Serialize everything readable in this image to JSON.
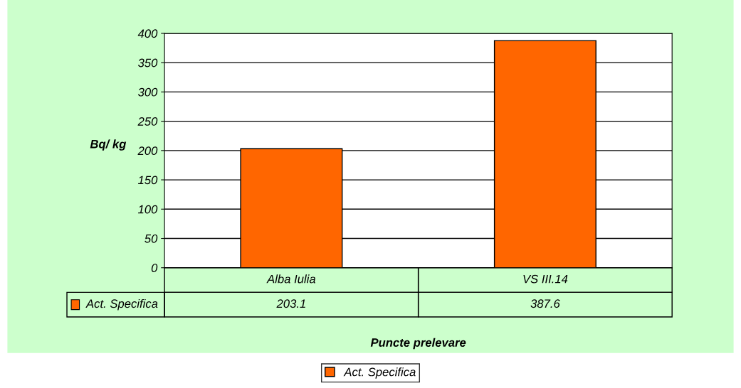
{
  "chart_data": {
    "type": "bar",
    "xlabel": "Puncte prelevare",
    "ylabel": "Bq/ kg",
    "categories": [
      "Alba Iulia",
      "VS III.14"
    ],
    "series": [
      {
        "name": "Act. Specifica",
        "color": "#ff6600",
        "values": [
          203.1,
          387.6
        ]
      }
    ],
    "ylim": [
      0,
      400
    ],
    "yticks": [
      0,
      50,
      100,
      150,
      200,
      250,
      300,
      350,
      400
    ],
    "grid": "y",
    "legend": "bottom",
    "data_labels": true
  }
}
